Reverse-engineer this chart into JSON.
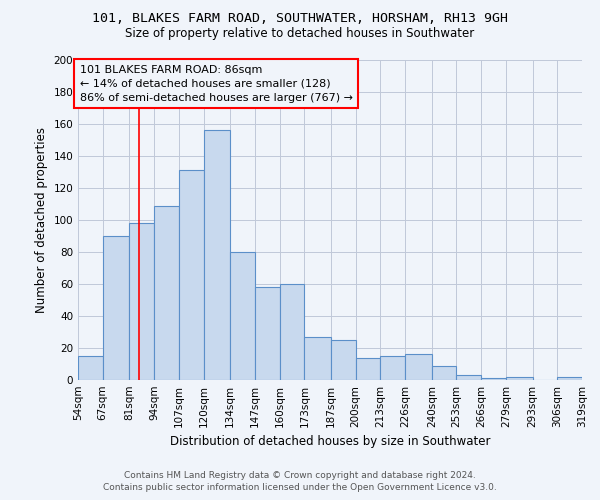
{
  "title": "101, BLAKES FARM ROAD, SOUTHWATER, HORSHAM, RH13 9GH",
  "subtitle": "Size of property relative to detached houses in Southwater",
  "xlabel": "Distribution of detached houses by size in Southwater",
  "ylabel": "Number of detached properties",
  "bar_edges": [
    54,
    67,
    81,
    94,
    107,
    120,
    134,
    147,
    160,
    173,
    187,
    200,
    213,
    226,
    240,
    253,
    266,
    279,
    293,
    306,
    319
  ],
  "bar_heights": [
    15,
    90,
    98,
    109,
    131,
    156,
    80,
    58,
    60,
    27,
    25,
    14,
    15,
    16,
    9,
    3,
    1,
    2,
    0,
    2
  ],
  "bar_color": "#c8d9ee",
  "bar_edgecolor": "#5b8fc9",
  "tick_labels": [
    "54sqm",
    "67sqm",
    "81sqm",
    "94sqm",
    "107sqm",
    "120sqm",
    "134sqm",
    "147sqm",
    "160sqm",
    "173sqm",
    "187sqm",
    "200sqm",
    "213sqm",
    "226sqm",
    "240sqm",
    "253sqm",
    "266sqm",
    "279sqm",
    "293sqm",
    "306sqm",
    "319sqm"
  ],
  "ylim": [
    0,
    200
  ],
  "yticks": [
    0,
    20,
    40,
    60,
    80,
    100,
    120,
    140,
    160,
    180,
    200
  ],
  "redline_x": 86,
  "annotation_title": "101 BLAKES FARM ROAD: 86sqm",
  "annotation_line1": "← 14% of detached houses are smaller (128)",
  "annotation_line2": "86% of semi-detached houses are larger (767) →",
  "footer1": "Contains HM Land Registry data © Crown copyright and database right 2024.",
  "footer2": "Contains public sector information licensed under the Open Government Licence v3.0.",
  "bg_color": "#f0f4fa",
  "grid_color": "#c0c8d8"
}
